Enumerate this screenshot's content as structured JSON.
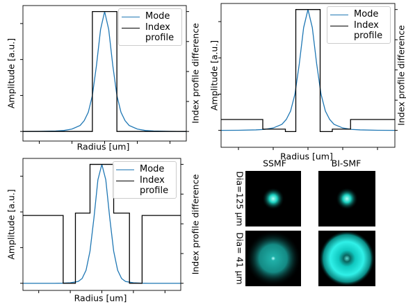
{
  "chart_data": [
    {
      "type": "line",
      "xlabel": "Radius [um]",
      "ylabel": "Amplitude [a.u.]",
      "y2label": "Index profile difference",
      "xlim": [
        -10,
        10
      ],
      "ylim": [
        -0.08,
        1.05
      ],
      "y2lim": [
        -0.08,
        1.05
      ],
      "xticks": [
        -8,
        -4,
        0,
        4,
        8
      ],
      "yticks": [
        0,
        0.3,
        0.6,
        0.9
      ],
      "y2ticks": [
        0,
        0.25,
        0.5,
        0.75,
        1
      ],
      "tick_labels": false,
      "legend": "upper right",
      "series": [
        {
          "name": "Mode",
          "color": "#1f77b4",
          "x": [
            -10,
            -8,
            -6,
            -5,
            -4,
            -3,
            -2.5,
            -2,
            -1.5,
            -1,
            -0.5,
            0,
            0.5,
            1,
            1.5,
            2,
            2.5,
            3,
            4,
            5,
            6,
            8,
            10
          ],
          "values": [
            0,
            0.001,
            0.004,
            0.008,
            0.02,
            0.05,
            0.09,
            0.16,
            0.3,
            0.55,
            0.85,
            1,
            0.85,
            0.55,
            0.3,
            0.16,
            0.09,
            0.05,
            0.02,
            0.008,
            0.004,
            0.001,
            0
          ]
        },
        {
          "name": "Index profile",
          "color": "#000000",
          "axis": "y2",
          "x": [
            -10,
            -1.5,
            -1.5,
            1.5,
            1.5,
            10
          ],
          "values": [
            0,
            0,
            1,
            1,
            0,
            0
          ]
        }
      ]
    },
    {
      "type": "line",
      "xlabel": "Radius [um]",
      "ylabel": "Amplitude [a.u.]",
      "y2label": "Index profile difference",
      "xlim": [
        -10,
        10
      ],
      "ylim": [
        -0.14,
        1.05
      ],
      "y2lim": [
        -0.14,
        1.05
      ],
      "xticks": [
        -8,
        -4,
        0,
        4,
        8
      ],
      "yticks": [
        0,
        0.3,
        0.6,
        0.9
      ],
      "y2ticks": [
        0,
        0.25,
        0.5,
        0.75,
        1
      ],
      "tick_labels": false,
      "legend": "upper right",
      "series": [
        {
          "name": "Mode",
          "color": "#1f77b4",
          "x": [
            -10,
            -8,
            -6,
            -5,
            -4,
            -3,
            -2.5,
            -2,
            -1.5,
            -1,
            -0.5,
            0,
            0.5,
            1,
            1.5,
            2,
            2.5,
            3,
            4,
            5,
            6,
            8,
            10
          ],
          "values": [
            0,
            0.001,
            0.004,
            0.008,
            0.02,
            0.05,
            0.09,
            0.16,
            0.3,
            0.55,
            0.85,
            1,
            0.85,
            0.55,
            0.3,
            0.16,
            0.09,
            0.05,
            0.02,
            0.008,
            0.004,
            0.001,
            0
          ]
        },
        {
          "name": "Index profile",
          "color": "#000000",
          "axis": "y2",
          "x": [
            -10,
            -5.2,
            -5.2,
            -2.6,
            -2.6,
            -1.4,
            -1.4,
            1.4,
            1.4,
            2.8,
            2.8,
            4.9,
            4.9,
            10
          ],
          "values": [
            0.09,
            0.09,
            0.01,
            0.01,
            -0.01,
            -0.01,
            1,
            1,
            -0.01,
            -0.01,
            0.01,
            0.01,
            0.09,
            0.09
          ]
        }
      ]
    },
    {
      "type": "line",
      "xlabel": "Radius [um]",
      "ylabel": "Amplitude [a.u.]",
      "y2label": "Index profile difference",
      "xlim": [
        -10,
        10
      ],
      "ylim": [
        -0.06,
        1.05
      ],
      "y2lim": [
        -0.06,
        1.05
      ],
      "xticks": [
        -8,
        -4,
        0,
        4,
        8
      ],
      "yticks": [
        0,
        0.3,
        0.6,
        0.9
      ],
      "y2ticks": [
        0,
        0.25,
        0.5,
        0.75,
        1
      ],
      "tick_labels": false,
      "legend": "upper right",
      "series": [
        {
          "name": "Mode",
          "color": "#1f77b4",
          "x": [
            -10,
            -8,
            -6,
            -5,
            -4,
            -3,
            -2.5,
            -2,
            -1.5,
            -1,
            -0.5,
            0,
            0.5,
            1,
            1.5,
            2,
            2.5,
            3,
            4,
            5,
            6,
            8,
            10
          ],
          "values": [
            0,
            0,
            0,
            0.001,
            0.004,
            0.015,
            0.04,
            0.11,
            0.27,
            0.55,
            0.87,
            1,
            0.87,
            0.55,
            0.27,
            0.11,
            0.04,
            0.015,
            0.004,
            0.001,
            0,
            0,
            0
          ]
        },
        {
          "name": "Index profile",
          "color": "#000000",
          "axis": "y2",
          "x": [
            -10,
            -4.9,
            -4.9,
            -3.35,
            -3.35,
            -1.5,
            -1.5,
            1.5,
            1.5,
            3.5,
            3.5,
            5.1,
            5.1,
            10
          ],
          "values": [
            0.57,
            0.57,
            0,
            0,
            0.59,
            0.59,
            1,
            1,
            0.59,
            0.59,
            0,
            0,
            0.57,
            0.57
          ]
        }
      ]
    }
  ],
  "image_panel": {
    "columns": [
      "SSMF",
      "BI-SMF"
    ],
    "rows": [
      "Dia=125 μm",
      "Dia= 41 μm"
    ]
  }
}
